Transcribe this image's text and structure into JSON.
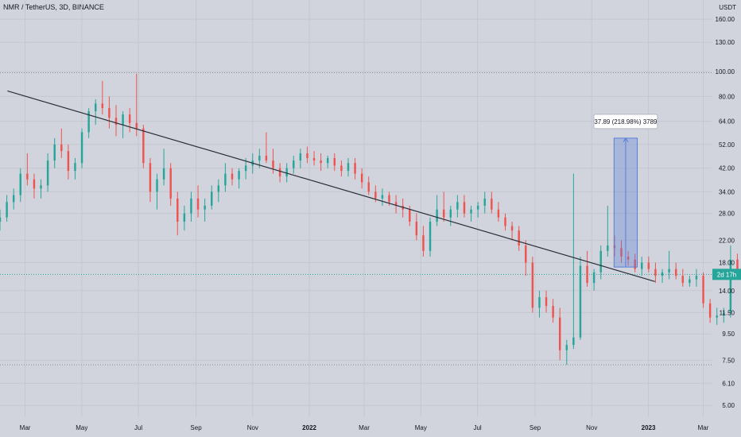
{
  "header": {
    "title": "NMR / TetherUS, 3D, BINANCE",
    "currency": "USDT"
  },
  "colors": {
    "up": "#26a69a",
    "down": "#ef5350",
    "bg": "#d1d4dc",
    "trendline": "#2a2e39",
    "measure": "#5b7fd6",
    "price_tag": "#26a69a"
  },
  "chart_data": {
    "type": "candlestick",
    "title": "NMR / TetherUS, 3D, BINANCE",
    "y_scale": "log",
    "ylim": [
      4.5,
      190
    ],
    "y_ticks": [
      "160.00",
      "130.00",
      "100.00",
      "80.00",
      "64.00",
      "52.00",
      "42.00",
      "34.00",
      "28.00",
      "22.00",
      "18.00",
      "14.00",
      "11.50",
      "9.50",
      "7.50",
      "6.10",
      "5.00"
    ],
    "x_ticks": [
      "Mar",
      "May",
      "Jul",
      "Sep",
      "Nov",
      "2022",
      "Mar",
      "May",
      "Jul",
      "Sep",
      "Nov",
      "2023",
      "Mar"
    ],
    "x_start": "2021-02-02",
    "x_end": "2023-03-10",
    "bar_interval_days": 3,
    "candles": [
      [
        26,
        29,
        24,
        27
      ],
      [
        27,
        33,
        26,
        31
      ],
      [
        31,
        35,
        29,
        33
      ],
      [
        33,
        42,
        31,
        40
      ],
      [
        40,
        48,
        36,
        38
      ],
      [
        38,
        40,
        32,
        35
      ],
      [
        35,
        38,
        32,
        36
      ],
      [
        36,
        48,
        34,
        45
      ],
      [
        45,
        55,
        42,
        52
      ],
      [
        52,
        60,
        46,
        49
      ],
      [
        49,
        52,
        38,
        41
      ],
      [
        41,
        46,
        38,
        44
      ],
      [
        44,
        60,
        42,
        58
      ],
      [
        58,
        72,
        55,
        70
      ],
      [
        70,
        78,
        62,
        75
      ],
      [
        75,
        92,
        68,
        72
      ],
      [
        72,
        80,
        60,
        66
      ],
      [
        66,
        74,
        56,
        62
      ],
      [
        62,
        70,
        55,
        68
      ],
      [
        68,
        72,
        58,
        63
      ],
      [
        63,
        98,
        56,
        60
      ],
      [
        60,
        62,
        42,
        44
      ],
      [
        44,
        46,
        31,
        34
      ],
      [
        34,
        40,
        29,
        38
      ],
      [
        38,
        50,
        36,
        42
      ],
      [
        42,
        44,
        30,
        32
      ],
      [
        32,
        34,
        23,
        26
      ],
      [
        26,
        30,
        24,
        28
      ],
      [
        28,
        34,
        26,
        32
      ],
      [
        32,
        36,
        27,
        29
      ],
      [
        29,
        32,
        26,
        30
      ],
      [
        30,
        36,
        29,
        34
      ],
      [
        34,
        38,
        31,
        36
      ],
      [
        36,
        44,
        34,
        40
      ],
      [
        40,
        42,
        36,
        38
      ],
      [
        38,
        42,
        35,
        41
      ],
      [
        41,
        46,
        38,
        43
      ],
      [
        43,
        48,
        40,
        45
      ],
      [
        45,
        50,
        42,
        47
      ],
      [
        47,
        58,
        44,
        45
      ],
      [
        45,
        50,
        40,
        42
      ],
      [
        42,
        44,
        37,
        39
      ],
      [
        39,
        44,
        37,
        42
      ],
      [
        42,
        47,
        40,
        45
      ],
      [
        45,
        50,
        42,
        48
      ],
      [
        48,
        51,
        44,
        46
      ],
      [
        46,
        49,
        43,
        45
      ],
      [
        45,
        48,
        41,
        44
      ],
      [
        44,
        47,
        42,
        46
      ],
      [
        46,
        48,
        41,
        43
      ],
      [
        43,
        45,
        39,
        41
      ],
      [
        41,
        46,
        39,
        44
      ],
      [
        44,
        46,
        38,
        40
      ],
      [
        40,
        42,
        35,
        37
      ],
      [
        37,
        39,
        33,
        34
      ],
      [
        34,
        36,
        31,
        32
      ],
      [
        32,
        35,
        30,
        33
      ],
      [
        33,
        34,
        30,
        31
      ],
      [
        31,
        33,
        28,
        30
      ],
      [
        30,
        32,
        27,
        29
      ],
      [
        29,
        30,
        25,
        26
      ],
      [
        26,
        28,
        22,
        23
      ],
      [
        23,
        25,
        19,
        20
      ],
      [
        20,
        27,
        19,
        26
      ],
      [
        26,
        33,
        25,
        29
      ],
      [
        29,
        34,
        26,
        27
      ],
      [
        27,
        30,
        25,
        29
      ],
      [
        29,
        33,
        27,
        31
      ],
      [
        31,
        33,
        27,
        28
      ],
      [
        28,
        30,
        26,
        29
      ],
      [
        29,
        31,
        27,
        30
      ],
      [
        30,
        34,
        28,
        32
      ],
      [
        32,
        34,
        28,
        29
      ],
      [
        29,
        31,
        26,
        27
      ],
      [
        27,
        28,
        24,
        25
      ],
      [
        25,
        26,
        22,
        24
      ],
      [
        24,
        25,
        20,
        21
      ],
      [
        21,
        22,
        16,
        18
      ],
      [
        18,
        19,
        11.5,
        12
      ],
      [
        12,
        14,
        11,
        13.2
      ],
      [
        13.2,
        14,
        11.5,
        12.2
      ],
      [
        12.2,
        13,
        10.5,
        11
      ],
      [
        11,
        12,
        7.5,
        8.2
      ],
      [
        8.2,
        9,
        7.2,
        8.6
      ],
      [
        8.6,
        40,
        8.3,
        9.2
      ],
      [
        9.2,
        19,
        9,
        17.5
      ],
      [
        17.5,
        20,
        14.5,
        15
      ],
      [
        15,
        17,
        14,
        16.5
      ],
      [
        16.5,
        21,
        15.5,
        20
      ],
      [
        20,
        30,
        19,
        21
      ],
      [
        21,
        23,
        19,
        20.5
      ],
      [
        20.5,
        22,
        18,
        19
      ],
      [
        19,
        20,
        17.5,
        18.5
      ],
      [
        18.5,
        19.5,
        16.5,
        17
      ],
      [
        17,
        19,
        16,
        18
      ],
      [
        18,
        19,
        16.5,
        17
      ],
      [
        17,
        18,
        15,
        16
      ],
      [
        16,
        17,
        15,
        16.5
      ],
      [
        16.5,
        20,
        15.5,
        17
      ],
      [
        17,
        18,
        15.5,
        16
      ],
      [
        16,
        17,
        14.5,
        15
      ],
      [
        15,
        16,
        14.5,
        15.5
      ],
      [
        15.5,
        17,
        14.5,
        16
      ],
      [
        16,
        16.5,
        12,
        12.5
      ],
      [
        12.5,
        13,
        10.5,
        11
      ],
      [
        11,
        12,
        10.3,
        11.2
      ],
      [
        11.2,
        12,
        10.5,
        11.5
      ],
      [
        11.5,
        21,
        11,
        18.5
      ],
      [
        18.5,
        19.5,
        15.5,
        16.2
      ]
    ],
    "annotations": {
      "trendline": {
        "x1": "2021-02-10",
        "y1": 84,
        "x2": "2023-01-08",
        "y2": 15.2
      },
      "resistance_top": 99,
      "support_bottom": 7.2,
      "current_price": 16.2,
      "price_tag_text": "2d 17h",
      "measure_box": {
        "x1": "2022-11-25",
        "x2": "2022-12-20",
        "y_low": 17.3,
        "y_high": 55,
        "label": "37.89 (218.98%) 3789"
      }
    }
  }
}
